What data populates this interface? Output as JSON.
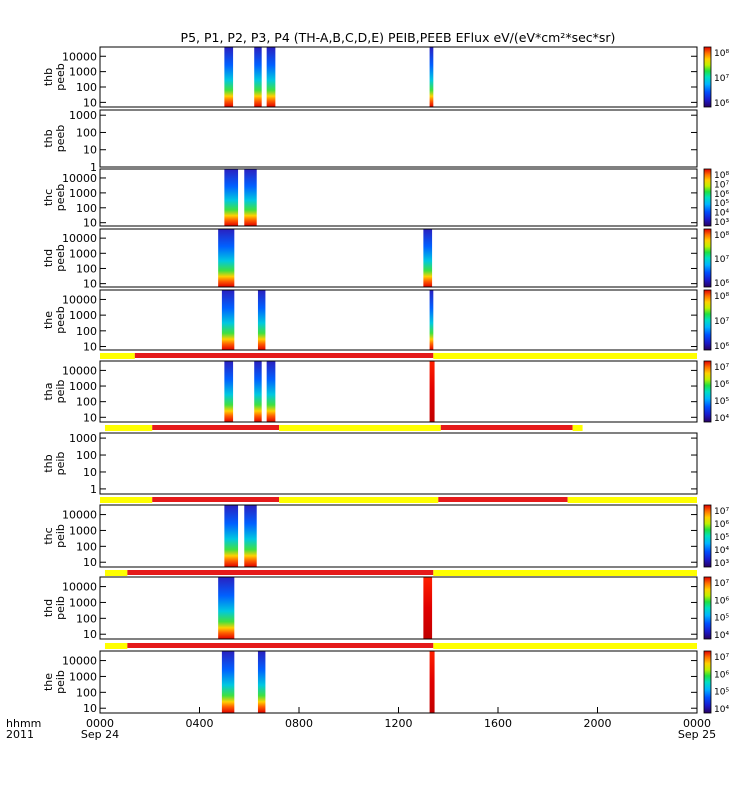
{
  "title": "P5, P1, P2, P3, P4 (TH-A,B,C,D,E) PEIB,PEEB EFlux eV/(eV*cm²*sec*sr)",
  "time_axis": {
    "label_line1": "hhmm",
    "label_line2": "2011",
    "ticks": [
      {
        "hour": 0,
        "label": "0000",
        "date": "Sep 24"
      },
      {
        "hour": 4,
        "label": "0400",
        "date": ""
      },
      {
        "hour": 8,
        "label": "0800",
        "date": ""
      },
      {
        "hour": 12,
        "label": "1200",
        "date": ""
      },
      {
        "hour": 16,
        "label": "1600",
        "date": ""
      },
      {
        "hour": 20,
        "label": "2000",
        "date": ""
      },
      {
        "hour": 24,
        "label": "0000",
        "date": "Sep 25"
      }
    ]
  },
  "colors": {
    "bar_red": "#e51a1a",
    "bar_yellow": "#ffff00",
    "frame": "#000000",
    "colormap": [
      "#2a0060",
      "#1a1acc",
      "#0050ff",
      "#00b4ff",
      "#00e0c0",
      "#20e040",
      "#c0f000",
      "#ffd000",
      "#ff7000",
      "#e00000"
    ]
  },
  "chart_data": {
    "type": "heatmap",
    "x_unit": "hours since 2011-09-24 00:00 UT",
    "xlim": [
      0,
      24
    ],
    "panels": [
      {
        "id": "thb-peeb-1",
        "probe": "thb",
        "product": "peeb",
        "yscale": "log",
        "ylim": [
          5,
          40000
        ],
        "yticks": [
          "10000",
          "1000",
          "100",
          "10"
        ],
        "cbar_ticks": [
          "10⁸",
          "10⁷",
          "10⁶"
        ],
        "blocks": [
          {
            "t0": 5.0,
            "t1": 5.35
          },
          {
            "t0": 6.2,
            "t1": 6.5
          },
          {
            "t0": 6.7,
            "t1": 7.05
          },
          {
            "t0": 13.25,
            "t1": 13.4
          }
        ]
      },
      {
        "id": "thb-peeb-2",
        "probe": "thb",
        "product": "peeb",
        "yscale": "log",
        "ylim": [
          1,
          2000
        ],
        "yticks": [
          "1000",
          "100",
          "10",
          "1"
        ],
        "cbar_ticks": [],
        "blocks": []
      },
      {
        "id": "thc-peeb",
        "probe": "thc",
        "product": "peeb",
        "yscale": "log",
        "ylim": [
          6,
          40000
        ],
        "yticks": [
          "10000",
          "1000",
          "100",
          "10"
        ],
        "cbar_ticks": [
          "10⁸",
          "10⁷",
          "10⁶",
          "10⁵",
          "10⁴",
          "10³"
        ],
        "blocks": [
          {
            "t0": 5.0,
            "t1": 5.55
          },
          {
            "t0": 5.8,
            "t1": 6.3
          }
        ]
      },
      {
        "id": "thd-peeb",
        "probe": "thd",
        "product": "peeb",
        "yscale": "log",
        "ylim": [
          6,
          40000
        ],
        "yticks": [
          "10000",
          "1000",
          "100",
          "10"
        ],
        "cbar_ticks": [
          "10⁸",
          "10⁷",
          "10⁶"
        ],
        "blocks": [
          {
            "t0": 4.75,
            "t1": 5.4
          },
          {
            "t0": 13.0,
            "t1": 13.35
          }
        ]
      },
      {
        "id": "the-peeb",
        "probe": "the",
        "product": "peeb",
        "yscale": "log",
        "ylim": [
          6,
          40000
        ],
        "yticks": [
          "10000",
          "1000",
          "100",
          "10"
        ],
        "cbar_ticks": [
          "10⁸",
          "10⁷",
          "10⁶"
        ],
        "blocks": [
          {
            "t0": 4.9,
            "t1": 5.4
          },
          {
            "t0": 6.35,
            "t1": 6.65
          },
          {
            "t0": 13.25,
            "t1": 13.4
          }
        ]
      },
      {
        "id": "tha-peib",
        "probe": "tha",
        "product": "peib",
        "yscale": "log",
        "ylim": [
          5,
          40000
        ],
        "yticks": [
          "10000",
          "1000",
          "100",
          "10"
        ],
        "cbar_ticks": [
          "10⁷",
          "10⁶",
          "10⁵",
          "10⁴"
        ],
        "blocks": [
          {
            "t0": 5.0,
            "t1": 5.35
          },
          {
            "t0": 6.2,
            "t1": 6.5
          },
          {
            "t0": 6.7,
            "t1": 7.05
          },
          {
            "t0": 13.25,
            "t1": 13.45
          }
        ]
      },
      {
        "id": "thb-peib",
        "probe": "thb",
        "product": "peib",
        "yscale": "log",
        "ylim": [
          0.5,
          2000
        ],
        "yticks": [
          "1000",
          "100",
          "10",
          "1"
        ],
        "cbar_ticks": [],
        "blocks": []
      },
      {
        "id": "thc-peib",
        "probe": "thc",
        "product": "peib",
        "yscale": "log",
        "ylim": [
          5,
          40000
        ],
        "yticks": [
          "10000",
          "1000",
          "100",
          "10"
        ],
        "cbar_ticks": [
          "10⁷",
          "10⁶",
          "10⁵",
          "10⁴",
          "10³"
        ],
        "blocks": [
          {
            "t0": 5.0,
            "t1": 5.55
          },
          {
            "t0": 5.8,
            "t1": 6.3
          }
        ]
      },
      {
        "id": "thd-peib",
        "probe": "thd",
        "product": "peib",
        "yscale": "log",
        "ylim": [
          5,
          40000
        ],
        "yticks": [
          "10000",
          "1000",
          "100",
          "10"
        ],
        "cbar_ticks": [
          "10⁷",
          "10⁶",
          "10⁵",
          "10⁴"
        ],
        "blocks": [
          {
            "t0": 4.75,
            "t1": 5.4
          },
          {
            "t0": 13.0,
            "t1": 13.35
          }
        ]
      },
      {
        "id": "the-peib",
        "probe": "the",
        "product": "peib",
        "yscale": "log",
        "ylim": [
          5,
          40000
        ],
        "yticks": [
          "10000",
          "1000",
          "100",
          "10"
        ],
        "cbar_ticks": [
          "10⁷",
          "10⁶",
          "10⁵",
          "10⁴"
        ],
        "blocks": [
          {
            "t0": 4.9,
            "t1": 5.4
          },
          {
            "t0": 6.35,
            "t1": 6.65
          },
          {
            "t0": 13.25,
            "t1": 13.45
          }
        ]
      }
    ],
    "mode_bars": [
      {
        "after_panel": 4,
        "segments": [
          {
            "t0": 0,
            "t1": 1.4,
            "color": "yellow"
          },
          {
            "t0": 1.4,
            "t1": 13.4,
            "color": "red"
          },
          {
            "t0": 13.4,
            "t1": 24,
            "color": "yellow"
          }
        ]
      },
      {
        "after_panel": 5,
        "segments": [
          {
            "t0": 0.2,
            "t1": 2.1,
            "color": "yellow"
          },
          {
            "t0": 2.1,
            "t1": 7.2,
            "color": "red"
          },
          {
            "t0": 7.2,
            "t1": 13.7,
            "color": "yellow"
          },
          {
            "t0": 13.7,
            "t1": 19.0,
            "color": "red"
          },
          {
            "t0": 19.0,
            "t1": 19.4,
            "color": "yellow"
          }
        ]
      },
      {
        "after_panel": 6,
        "segments": [
          {
            "t0": 0,
            "t1": 2.1,
            "color": "yellow"
          },
          {
            "t0": 2.1,
            "t1": 7.2,
            "color": "red"
          },
          {
            "t0": 7.2,
            "t1": 13.6,
            "color": "yellow"
          },
          {
            "t0": 13.6,
            "t1": 18.8,
            "color": "red"
          },
          {
            "t0": 18.8,
            "t1": 24,
            "color": "yellow"
          }
        ]
      },
      {
        "after_panel": 7,
        "segments": [
          {
            "t0": 0.2,
            "t1": 1.1,
            "color": "yellow"
          },
          {
            "t0": 1.1,
            "t1": 13.4,
            "color": "red"
          },
          {
            "t0": 13.4,
            "t1": 24,
            "color": "yellow"
          }
        ]
      },
      {
        "after_panel": 8,
        "segments": [
          {
            "t0": 0.2,
            "t1": 1.1,
            "color": "yellow"
          },
          {
            "t0": 1.1,
            "t1": 13.4,
            "color": "red"
          },
          {
            "t0": 13.4,
            "t1": 24,
            "color": "yellow"
          }
        ]
      }
    ]
  }
}
